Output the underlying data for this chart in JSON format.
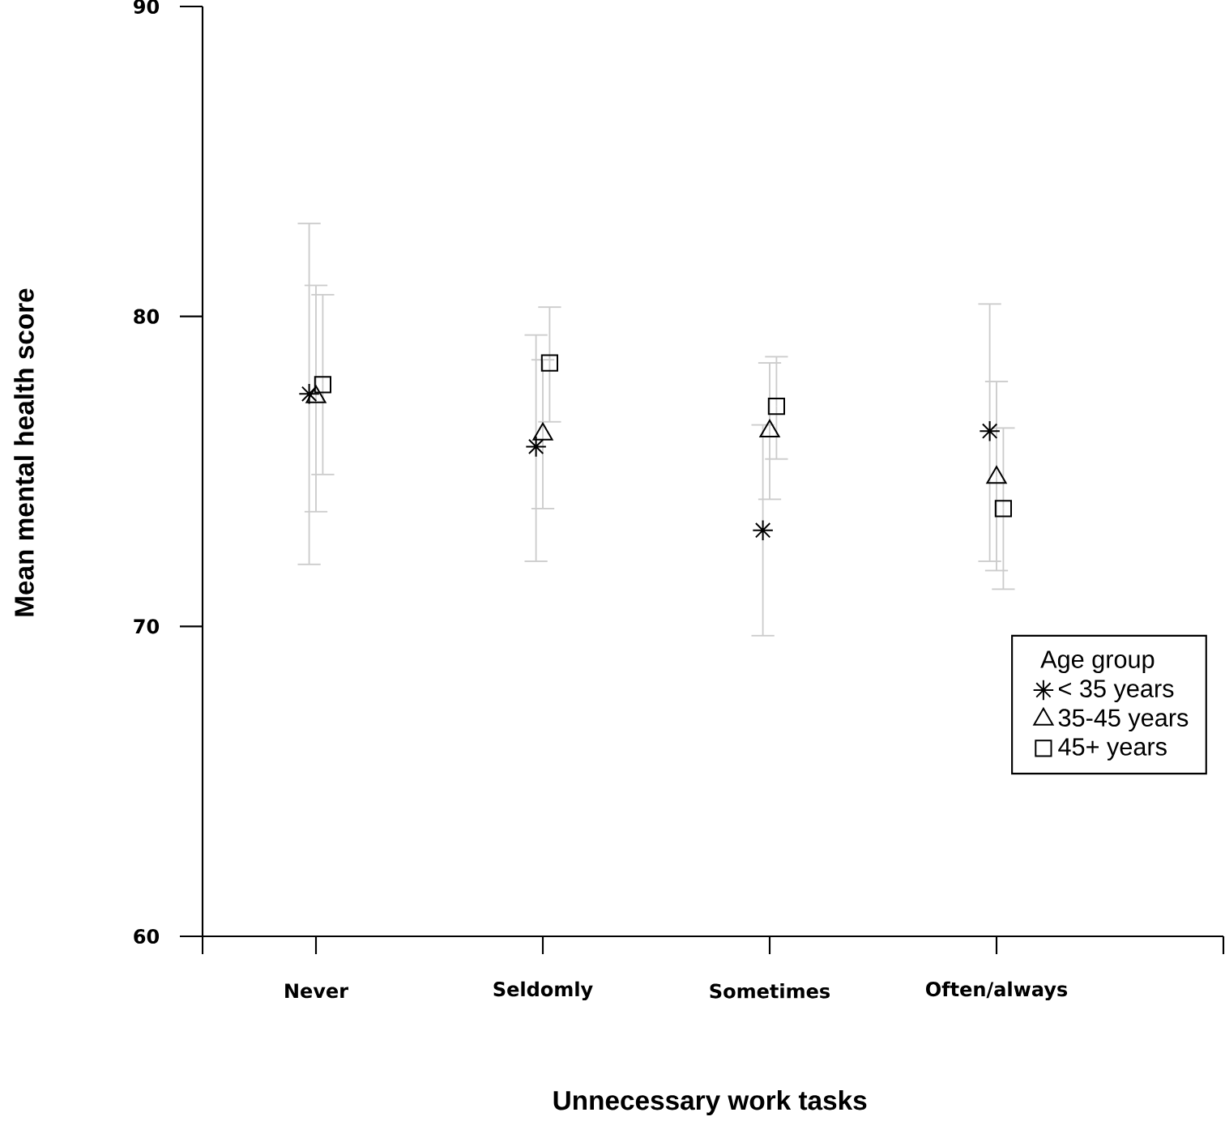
{
  "chart_data": {
    "type": "scatter",
    "xlabel": "Unnecessary work tasks",
    "ylabel": "Mean mental health score",
    "legend_title": "Age group",
    "legend": "bottom right",
    "categories": [
      "Never",
      "Seldomly",
      "Sometimes",
      "Often/always"
    ],
    "ylim": [
      60,
      90
    ],
    "yticks": [
      60,
      70,
      80,
      90
    ],
    "series": [
      {
        "name": "< 35 years",
        "color": "#000000",
        "marker": "cross",
        "values": [
          77.5,
          75.8,
          73.1,
          76.3
        ],
        "errors": [
          [
            72.0,
            83.0
          ],
          [
            72.1,
            79.4
          ],
          [
            69.7,
            76.5
          ],
          [
            72.1,
            80.4
          ]
        ]
      },
      {
        "name": "35-45 years",
        "color": "#000000",
        "marker": "triangle",
        "values": [
          77.4,
          76.2,
          76.3,
          74.8
        ],
        "errors": [
          [
            73.7,
            81.0
          ],
          [
            73.8,
            78.6
          ],
          [
            74.1,
            78.5
          ],
          [
            71.8,
            77.9
          ]
        ]
      },
      {
        "name": "45+ years",
        "color": "#000000",
        "marker": "square",
        "values": [
          77.8,
          78.5,
          77.1,
          73.8
        ],
        "errors": [
          [
            74.9,
            80.7
          ],
          [
            76.6,
            80.3
          ],
          [
            75.4,
            78.7
          ],
          [
            71.2,
            76.4
          ]
        ]
      }
    ]
  }
}
